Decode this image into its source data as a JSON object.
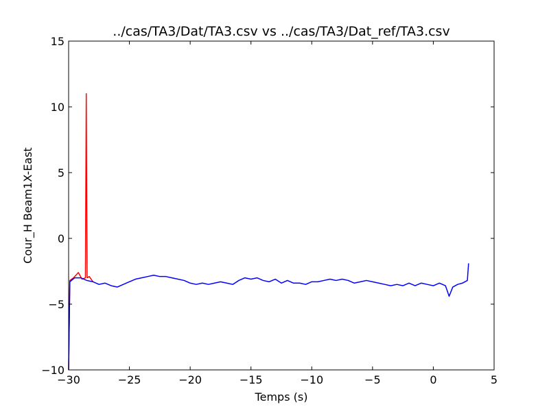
{
  "chart_data": {
    "type": "line",
    "title": "../cas/TA3/Dat/TA3.csv vs ../cas/TA3/Dat_ref/TA3.csv",
    "xlabel": "Temps (s)",
    "ylabel": "Cour_H Beam1X-East",
    "xlim": [
      -30,
      5
    ],
    "ylim": [
      -10,
      15
    ],
    "xticks": [
      -30,
      -25,
      -20,
      -15,
      -10,
      -5,
      0,
      5
    ],
    "yticks": [
      -10,
      -5,
      0,
      5,
      10,
      15
    ],
    "xtick_labels": [
      "−30",
      "−25",
      "−20",
      "−15",
      "−10",
      "−5",
      "0",
      "5"
    ],
    "ytick_labels": [
      "−10",
      "−5",
      "0",
      "5",
      "10",
      "15"
    ],
    "grid": false,
    "series": [
      {
        "color": "#ff0000",
        "points": [
          [
            -30.0,
            -10.0
          ],
          [
            -29.9,
            -3.2
          ],
          [
            -29.6,
            -3.0
          ],
          [
            -29.2,
            -2.6
          ],
          [
            -28.9,
            -3.1
          ],
          [
            -28.62,
            -3.0
          ],
          [
            -28.55,
            11.0
          ],
          [
            -28.48,
            -3.0
          ],
          [
            -28.3,
            -2.9
          ],
          [
            -28.0,
            -3.3
          ]
        ]
      },
      {
        "color": "#0000ff",
        "points": [
          [
            -30.0,
            -10.0
          ],
          [
            -29.9,
            -3.3
          ],
          [
            -29.5,
            -3.0
          ],
          [
            -29.0,
            -3.0
          ],
          [
            -28.5,
            -3.2
          ],
          [
            -28.0,
            -3.3
          ],
          [
            -27.5,
            -3.5
          ],
          [
            -27.0,
            -3.4
          ],
          [
            -26.5,
            -3.6
          ],
          [
            -26.0,
            -3.7
          ],
          [
            -25.5,
            -3.5
          ],
          [
            -25.0,
            -3.3
          ],
          [
            -24.5,
            -3.1
          ],
          [
            -24.0,
            -3.0
          ],
          [
            -23.5,
            -2.9
          ],
          [
            -23.0,
            -2.8
          ],
          [
            -22.5,
            -2.9
          ],
          [
            -22.0,
            -2.9
          ],
          [
            -21.5,
            -3.0
          ],
          [
            -21.0,
            -3.1
          ],
          [
            -20.5,
            -3.2
          ],
          [
            -20.0,
            -3.4
          ],
          [
            -19.5,
            -3.5
          ],
          [
            -19.0,
            -3.4
          ],
          [
            -18.5,
            -3.5
          ],
          [
            -18.0,
            -3.4
          ],
          [
            -17.5,
            -3.3
          ],
          [
            -17.0,
            -3.4
          ],
          [
            -16.5,
            -3.5
          ],
          [
            -16.0,
            -3.2
          ],
          [
            -15.5,
            -3.0
          ],
          [
            -15.0,
            -3.1
          ],
          [
            -14.5,
            -3.0
          ],
          [
            -14.0,
            -3.2
          ],
          [
            -13.5,
            -3.3
          ],
          [
            -13.0,
            -3.1
          ],
          [
            -12.5,
            -3.4
          ],
          [
            -12.0,
            -3.2
          ],
          [
            -11.5,
            -3.4
          ],
          [
            -11.0,
            -3.4
          ],
          [
            -10.5,
            -3.5
          ],
          [
            -10.0,
            -3.3
          ],
          [
            -9.5,
            -3.3
          ],
          [
            -9.0,
            -3.2
          ],
          [
            -8.5,
            -3.1
          ],
          [
            -8.0,
            -3.2
          ],
          [
            -7.5,
            -3.1
          ],
          [
            -7.0,
            -3.2
          ],
          [
            -6.5,
            -3.4
          ],
          [
            -6.0,
            -3.3
          ],
          [
            -5.5,
            -3.2
          ],
          [
            -5.0,
            -3.3
          ],
          [
            -4.5,
            -3.4
          ],
          [
            -4.0,
            -3.5
          ],
          [
            -3.5,
            -3.6
          ],
          [
            -3.0,
            -3.5
          ],
          [
            -2.5,
            -3.6
          ],
          [
            -2.0,
            -3.4
          ],
          [
            -1.5,
            -3.6
          ],
          [
            -1.0,
            -3.4
          ],
          [
            -0.5,
            -3.5
          ],
          [
            0.0,
            -3.6
          ],
          [
            0.5,
            -3.4
          ],
          [
            1.0,
            -3.6
          ],
          [
            1.3,
            -4.4
          ],
          [
            1.6,
            -3.7
          ],
          [
            2.0,
            -3.5
          ],
          [
            2.4,
            -3.4
          ],
          [
            2.8,
            -3.2
          ],
          [
            2.9,
            -1.9
          ]
        ]
      }
    ]
  }
}
